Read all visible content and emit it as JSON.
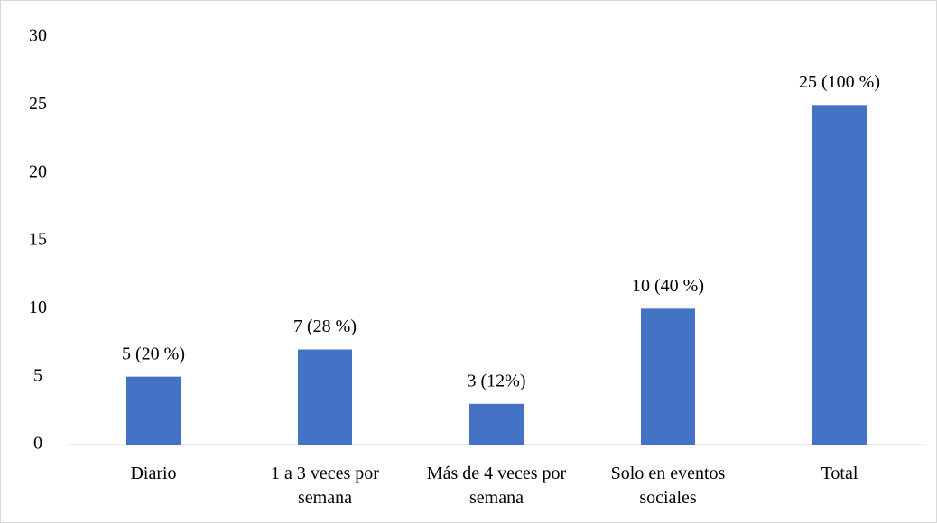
{
  "chart_data": {
    "type": "bar",
    "categories": [
      "Diario",
      "1 a 3 veces por semana",
      "Más de 4 veces por semana",
      "Solo en eventos sociales",
      "Total"
    ],
    "values": [
      5,
      7,
      3,
      10,
      25
    ],
    "value_labels": [
      "5 (20 %)",
      "7 (28 %)",
      "3 (12%)",
      "10 (40 %)",
      "25 (100 %)"
    ],
    "color": "#4472c4",
    "ylim": [
      0,
      30
    ],
    "yticks": [
      0,
      5,
      10,
      15,
      20,
      25,
      30
    ],
    "grid": false
  }
}
